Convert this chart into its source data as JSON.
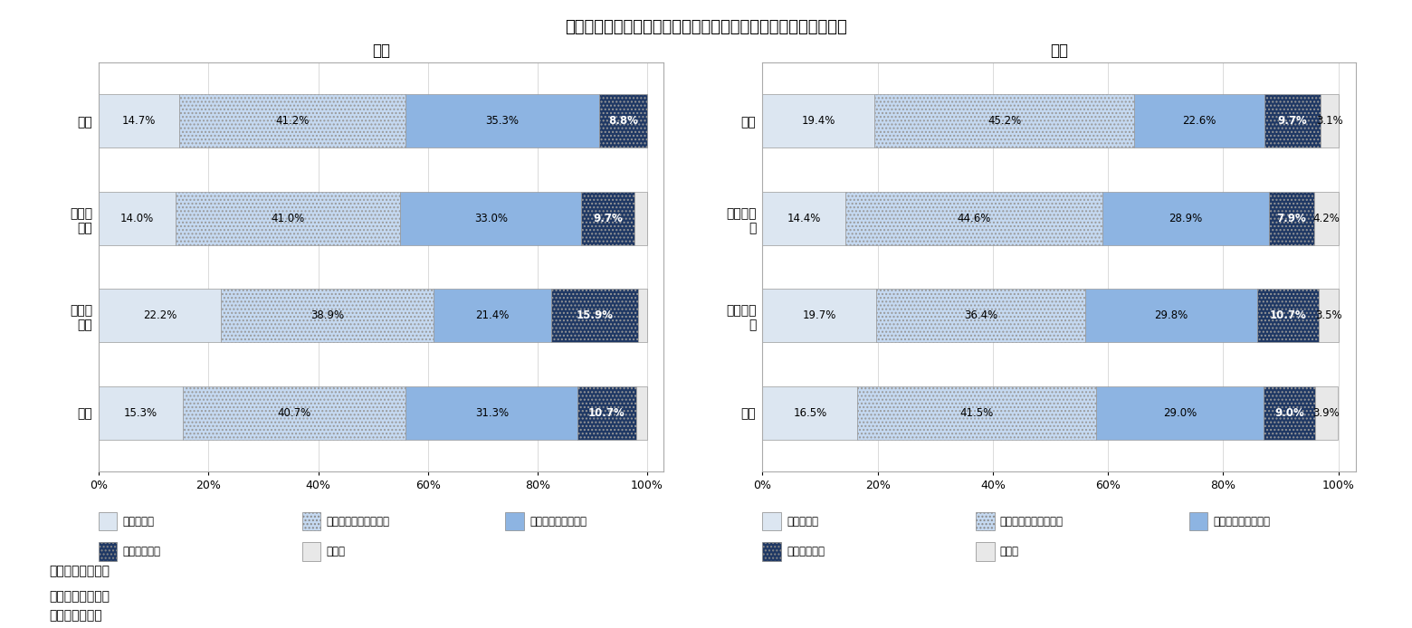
{
  "title": "図表６　　性・配偶関係別にみた高齢者の老後の生活資金の不安",
  "male_title": "男性",
  "female_title": "女性",
  "categories_male": [
    "未婚",
    "配偶者\nあり",
    "離別・\n死別",
    "全体"
  ],
  "categories_female": [
    "未婚",
    "配偶者あ\nり",
    "離別・死\n別",
    "全体"
  ],
  "male_data": [
    [
      14.7,
      41.2,
      35.3,
      8.8,
      0.0
    ],
    [
      14.0,
      41.0,
      33.0,
      9.7,
      2.3
    ],
    [
      22.2,
      38.9,
      21.4,
      15.9,
      1.6
    ],
    [
      15.3,
      40.7,
      31.3,
      10.7,
      2.0
    ]
  ],
  "female_data": [
    [
      19.4,
      45.2,
      22.6,
      9.7,
      3.1
    ],
    [
      14.4,
      44.6,
      28.9,
      7.9,
      4.2
    ],
    [
      19.7,
      36.4,
      29.8,
      10.7,
      3.5
    ],
    [
      16.5,
      41.5,
      29.0,
      9.0,
      3.9
    ]
  ],
  "series_labels": [
    "とても不安",
    "どちらかといえば不安",
    "あまり不安ではない",
    "不安ではない",
    "無回答"
  ],
  "seg_colors": [
    "#dce6f1",
    "#c5d9f1",
    "#8db4e2",
    "#1f3864",
    "#e8e8e8"
  ],
  "seg_hatch": [
    null,
    "....",
    null,
    "....",
    null
  ],
  "note1": "（備考１）同上。",
  "note2": "（備考２）同上。",
  "note3": "（資料）同上。"
}
